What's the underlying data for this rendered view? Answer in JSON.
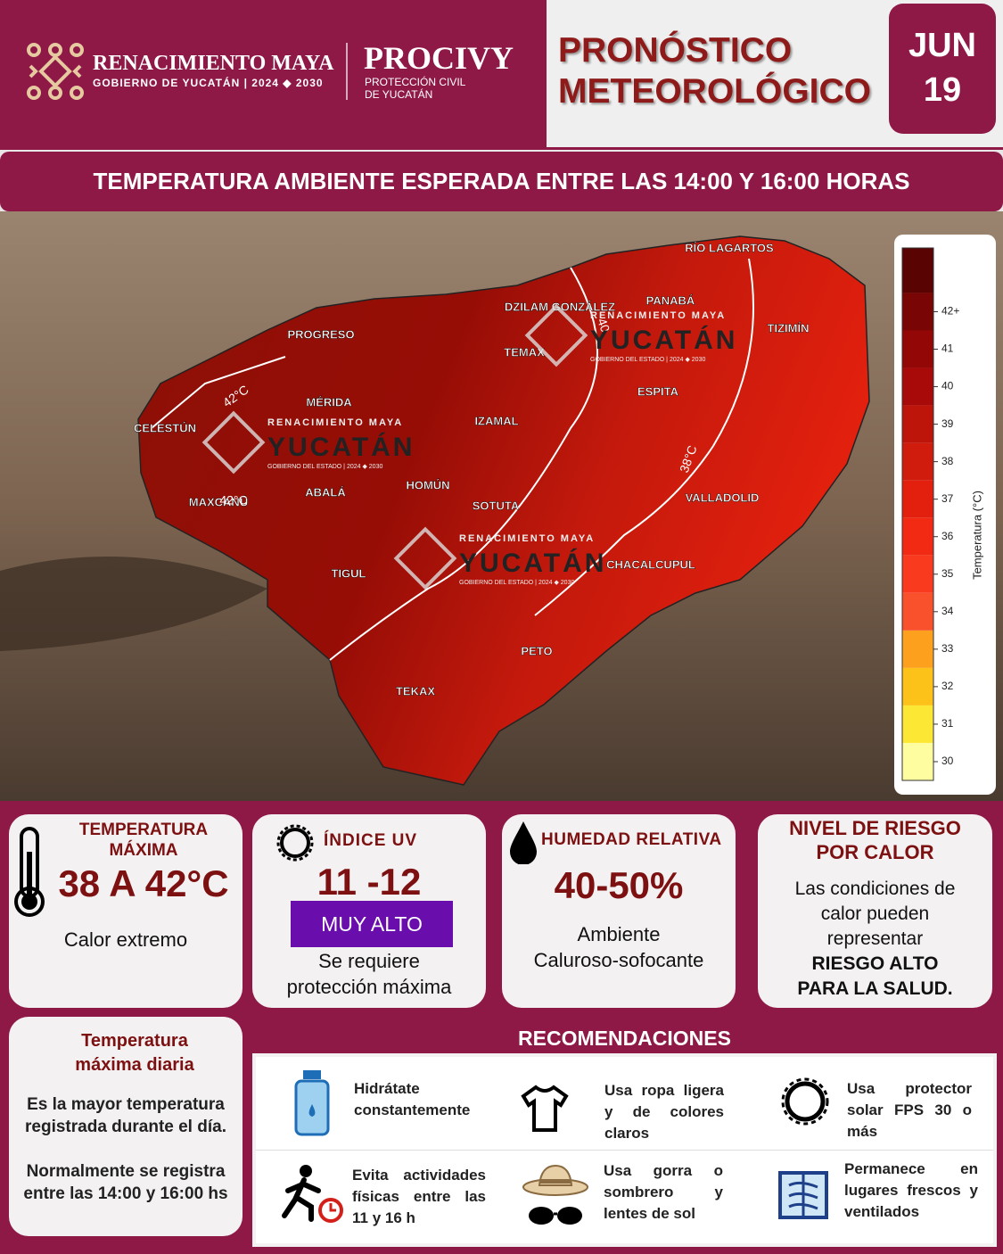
{
  "header": {
    "brand": "RENACIMIENTO MAYA",
    "brand_sub": "GOBIERNO DE YUCATÁN",
    "brand_years": "2024 ◆ 2030",
    "agency": "PROCIVY",
    "agency_sub_1": "PROTECCIÓN CIVIL",
    "agency_sub_2": "DE YUCATÁN",
    "title_1": "PRONÓSTICO",
    "title_2": "METEOROLÓGICO",
    "month": "JUN",
    "day": "19"
  },
  "banner": "TEMPERATURA AMBIENTE ESPERADA ENTRE LAS 14:00 Y 16:00 HORAS",
  "map": {
    "places": [
      "RÍO LAGARTOS",
      "PANABÁ",
      "DZILAM GONZÁLEZ",
      "TIZIMÍN",
      "PROGRESO",
      "TEMAX",
      "MÉRIDA",
      "ESPITA",
      "CELESTÚN",
      "IZAMAL",
      "VALLADOLID",
      "ABALÁ",
      "HOMÚN",
      "SOTUTA",
      "MAXCANÚ",
      "TIGUL",
      "CHACALCUPUL",
      "PETO",
      "TEKAX"
    ],
    "isotherms": [
      "42°C",
      "42°C",
      "38°C",
      "40"
    ],
    "watermark_brand": "RENACIMIENTO MAYA",
    "watermark_name": "YUCATÁN",
    "watermark_sub": "GOBIERNO DEL ESTADO | 2024 ◆ 2030"
  },
  "colorbar": {
    "label": "Temperatura (°C)",
    "bounds": [
      29.5,
      30.5,
      31.5,
      32.5,
      33.5,
      34.5,
      35.5,
      36.5,
      37.5,
      38.5,
      39.5,
      40.5,
      41.5,
      42.5,
      43.7
    ],
    "colors": [
      "#fefea0",
      "#fde735",
      "#fdc21a",
      "#fca01e",
      "#f9512b",
      "#fa3a1f",
      "#f32a13",
      "#e3200e",
      "#d01c0c",
      "#be150a",
      "#a80a0a",
      "#940707",
      "#7a0505",
      "#5a0303"
    ],
    "ticks": [
      30,
      31,
      32,
      33,
      34,
      35,
      36,
      37,
      38,
      39,
      40,
      41,
      {
        "value": 42,
        "label": "42+"
      }
    ]
  },
  "cards": {
    "max_temp": {
      "title_1": "TEMPERATURA",
      "title_2": "MÁXIMA",
      "value": "38 A 42°C",
      "note": "Calor extremo"
    },
    "uv": {
      "title": "ÍNDICE UV",
      "value": "11 -12",
      "level": "MUY ALTO",
      "note_1": "Se requiere",
      "note_2": "protección máxima"
    },
    "humidity": {
      "title": "HUMEDAD RELATIVA",
      "value": "40-50%",
      "note_1": "Ambiente",
      "note_2": "Caluroso-sofocante"
    },
    "risk": {
      "title_1": "NIVEL DE RIESGO",
      "title_2": "POR CALOR",
      "text_1": "Las condiciones de",
      "text_2": "calor pueden",
      "text_3": "representar",
      "strong_1": "RIESGO ALTO",
      "strong_2": "PARA LA SALUD."
    },
    "definition": {
      "title_1": "Temperatura",
      "title_2": "máxima diaria",
      "text_1": "Es la mayor temperatura registrada durante el día.",
      "text_2": "Normalmente se registra entre las 14:00 y 16:00 hs"
    }
  },
  "recommendations": {
    "title": "RECOMENDACIONES",
    "items": [
      "Hidrátate constantemente",
      "Usa ropa ligera y de colores claros",
      "Usa protector solar FPS 30 o más",
      "Evita actividades físicas entre las 11 y 16 h",
      "Usa gorra o sombrero y lentes de sol",
      "Permanece en lugares frescos y ventilados"
    ]
  }
}
